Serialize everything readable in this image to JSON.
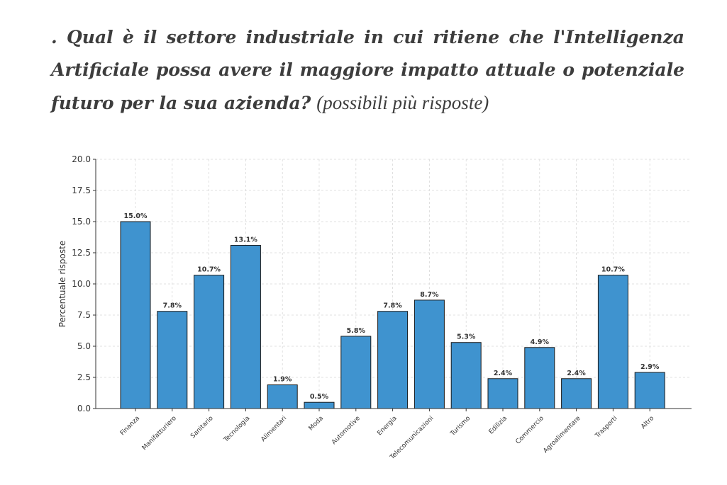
{
  "question": {
    "text": ". Qual è il settore industriale in cui ritiene che l'Intelligenza Artificiale possa avere il maggiore impatto attuale o potenziale futuro per la sua azienda?",
    "note": "(possibili più risposte)"
  },
  "chart_data": {
    "type": "bar",
    "categories": [
      "Finanza",
      "Manifatturiero",
      "Sanitario",
      "Tecnologia",
      "Alimentari",
      "Moda",
      "Automotive",
      "Energia",
      "Telecomunicazioni",
      "Turismo",
      "Edilizia",
      "Commercio",
      "Agroalimentare",
      "Trasporti",
      "Altro"
    ],
    "values": [
      15.0,
      7.8,
      10.7,
      13.1,
      1.9,
      0.5,
      5.8,
      7.8,
      8.7,
      5.3,
      2.4,
      4.9,
      2.4,
      10.7,
      2.9
    ],
    "data_labels": [
      "15.0%",
      "7.8%",
      "10.7%",
      "13.1%",
      "1.9%",
      "0.5%",
      "5.8%",
      "7.8%",
      "8.7%",
      "5.3%",
      "2.4%",
      "4.9%",
      "2.4%",
      "10.7%",
      "2.9%"
    ],
    "xlabel": "",
    "ylabel": "Percentuale risposte",
    "ylim": [
      0,
      20
    ],
    "yticks": [
      "0.0",
      "2.5",
      "5.0",
      "7.5",
      "10.0",
      "12.5",
      "15.0",
      "17.5",
      "20.0"
    ],
    "grid": true,
    "bar_color": "#3f93cf",
    "edge_color": "#1a1a1a"
  }
}
